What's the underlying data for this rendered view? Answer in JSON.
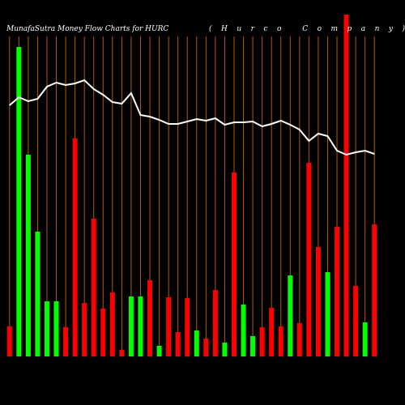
{
  "chart_data": {
    "type": "bar-line",
    "title": "MunafaSutra  Money Flow  Charts for HURC",
    "subtitle": "(Hurco  Company)",
    "background": "#000000",
    "grid": true,
    "grid_color": "#b35a00",
    "ylim": [
      0,
      425
    ],
    "categories": [
      null,
      null,
      null,
      null,
      null,
      null,
      null,
      null,
      null,
      null,
      null,
      null,
      null,
      null,
      null,
      null,
      null,
      null,
      null,
      null,
      null,
      null,
      null,
      null,
      null,
      null,
      null,
      null,
      null,
      null,
      null,
      null,
      null,
      null,
      null,
      null,
      null,
      null,
      null,
      null
    ],
    "series": [
      {
        "type": "bar",
        "values": [
          37,
          382,
          249,
          154,
          68,
          68,
          36,
          269,
          66,
          170,
          59,
          79,
          8,
          74,
          74,
          94,
          13,
          73,
          30,
          72,
          32,
          22,
          82,
          17,
          227,
          64,
          25,
          36,
          60,
          37,
          100,
          41,
          239,
          135,
          104,
          160,
          422,
          87,
          42,
          163
        ],
        "colors": [
          "#ff0000",
          "#00ff00",
          "#00ff00",
          "#00ff00",
          "#00ff00",
          "#00ff00",
          "#ff0000",
          "#ff0000",
          "#ff0000",
          "#ff0000",
          "#ff0000",
          "#ff0000",
          "#ff0000",
          "#00ff00",
          "#00ff00",
          "#ff0000",
          "#00ff00",
          "#ff0000",
          "#ff0000",
          "#ff0000",
          "#00ff00",
          "#ff0000",
          "#ff0000",
          "#00ff00",
          "#ff0000",
          "#00ff00",
          "#00ff00",
          "#ff0000",
          "#ff0000",
          "#ff0000",
          "#00ff00",
          "#ff0000",
          "#ff0000",
          "#ff0000",
          "#00ff00",
          "#ff0000",
          "#ff0000",
          "#ff0000",
          "#00ff00",
          "#ff0000"
        ]
      },
      {
        "type": "line",
        "color": "#ffffff",
        "values": [
          310,
          320,
          315,
          318,
          333,
          338,
          335,
          337,
          341,
          330,
          323,
          314,
          312,
          325,
          298,
          296,
          292,
          287,
          287,
          290,
          293,
          291,
          294,
          286,
          289,
          289,
          290,
          284,
          287,
          291,
          286,
          280,
          266,
          275,
          272,
          254,
          249,
          252,
          254,
          250
        ]
      }
    ]
  }
}
